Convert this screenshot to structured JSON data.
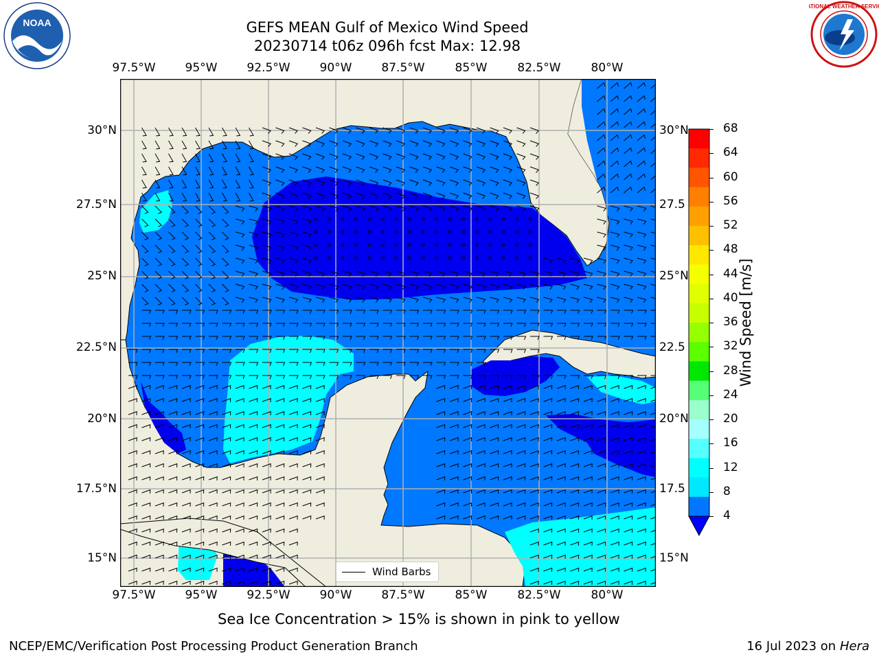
{
  "title": {
    "line1": "GEFS MEAN Gulf of Mexico Wind Speed",
    "line2": "20230714 t06z 096h fcst   Max: 12.98"
  },
  "longitude_ticks": [
    "97.5°W",
    "95°W",
    "92.5°W",
    "90°W",
    "87.5°W",
    "85°W",
    "82.5°W",
    "80°W"
  ],
  "latitude_ticks_left": [
    "30°N",
    "27.5°N",
    "25°N",
    "22.5°N",
    "20°N",
    "17.5°N",
    "15°N"
  ],
  "latitude_ticks_right": [
    "30°N",
    "27.5",
    "25°N",
    "22.5",
    "20°N",
    "17.5",
    "15°N"
  ],
  "legend": {
    "label": "Wind Barbs"
  },
  "colorbar": {
    "label": "Wind Speed [m/s]",
    "ticks": [
      "68",
      "64",
      "60",
      "56",
      "52",
      "48",
      "44",
      "40",
      "36",
      "32",
      "28",
      "24",
      "20",
      "16",
      "12",
      "8",
      "4"
    ],
    "colors": [
      "#ff0000",
      "#ff2a00",
      "#ff5500",
      "#ff7f00",
      "#ffa000",
      "#ffc000",
      "#ffe800",
      "#f5ff00",
      "#e0ff00",
      "#c8ff00",
      "#96ff00",
      "#5aff00",
      "#00e800",
      "#55ff77",
      "#99ffcc",
      "#a6ffff",
      "#55ffff",
      "#00ffff",
      "#00e8ff",
      "#0077ff"
    ],
    "extend_color": "#0000ff"
  },
  "note": "Sea Ice Concentration > 15% is shown in pink to yellow",
  "footer": {
    "left": "NCEP/EMC/Verification Post Processing Product Generation Branch",
    "right_date": "16 Jul 2023 on ",
    "right_host": "Hera"
  },
  "colors": {
    "land": "#efedde",
    "speed_4_8": "#0078ff",
    "speed_8_12": "#00ffff",
    "speed_12_16": "#55ffff",
    "speed_below_4": "#0000ee",
    "grid": "#b0b0b0"
  },
  "logos": {
    "left": "NOAA",
    "right": "NATIONAL WEATHER SERVICE"
  }
}
